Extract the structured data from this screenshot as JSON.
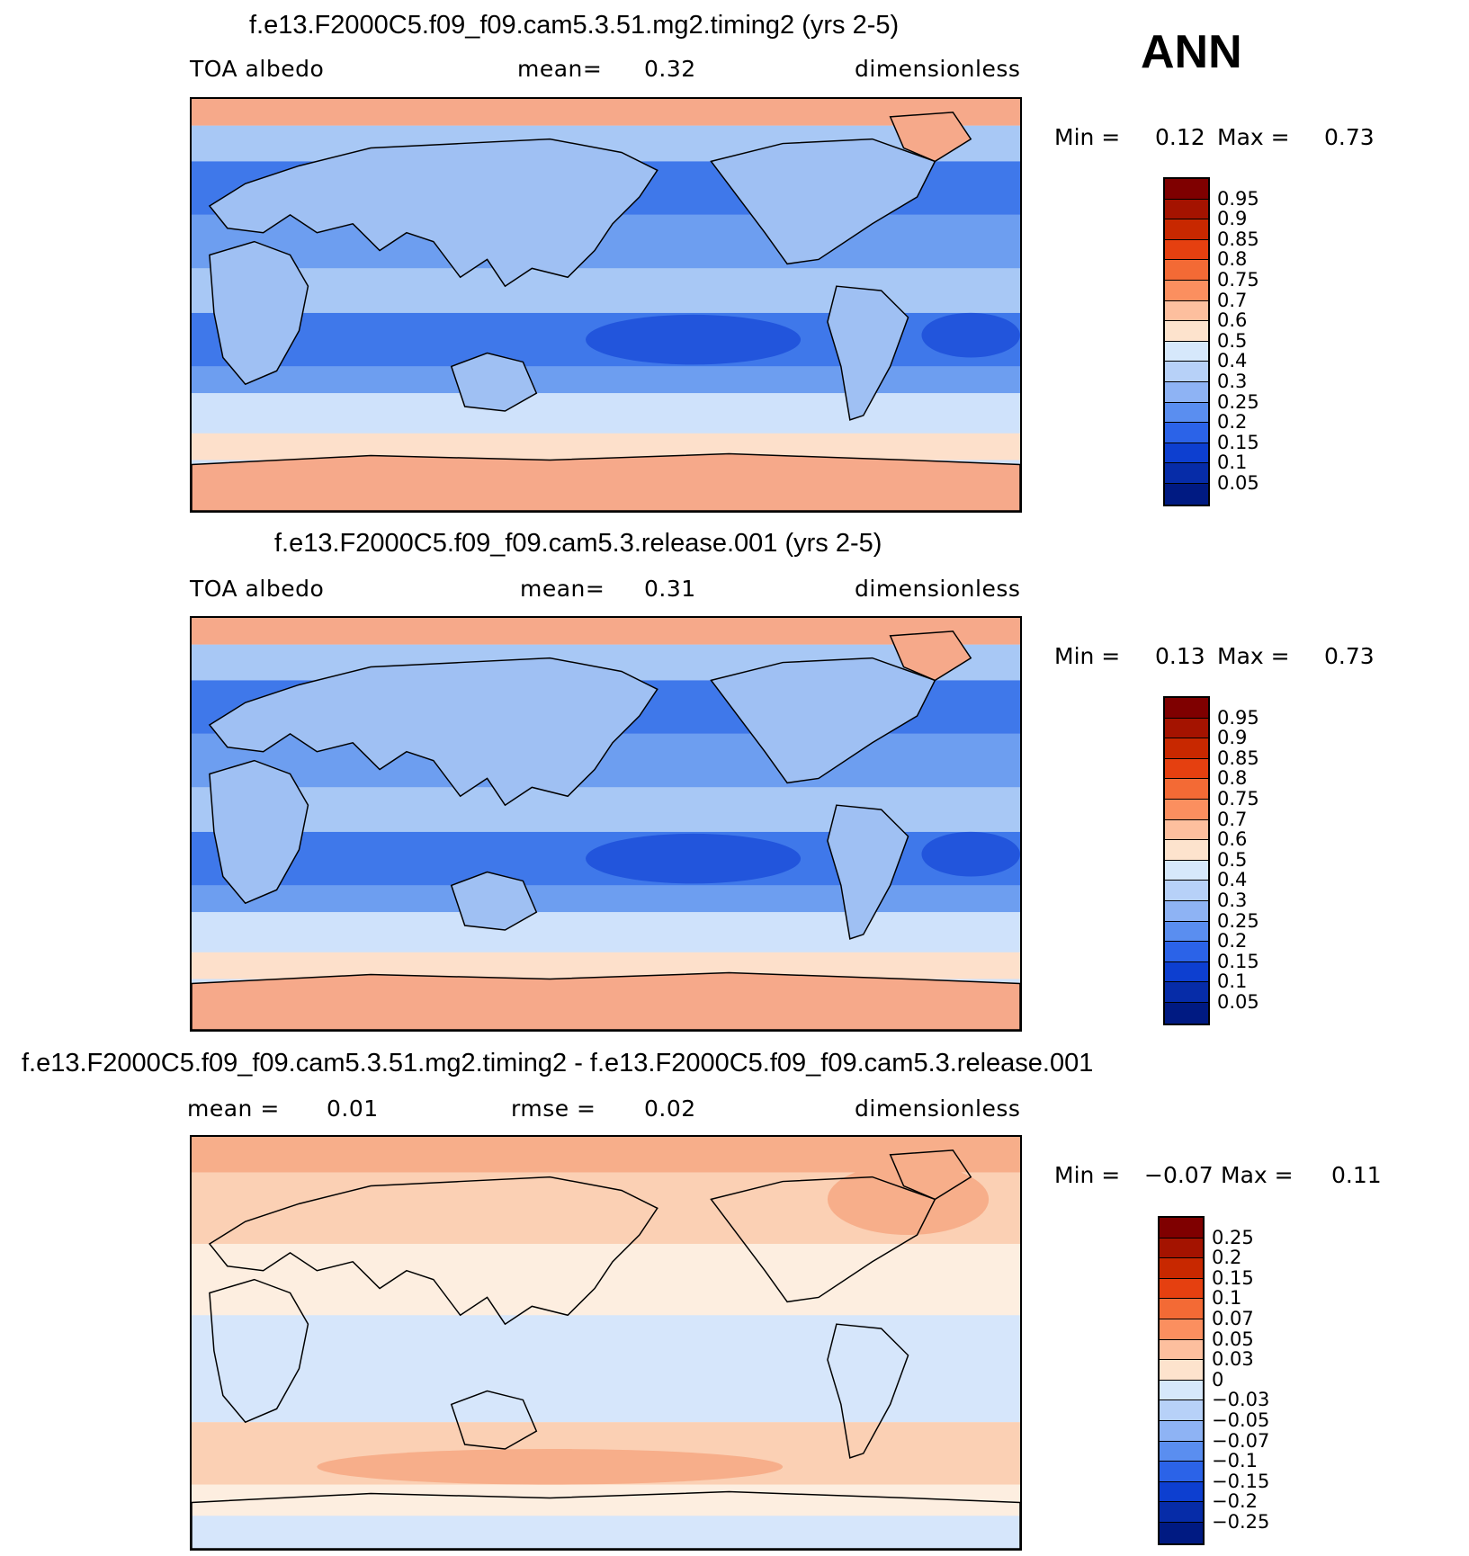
{
  "season_label": "ANN",
  "panels": [
    {
      "title": "f.e13.F2000C5.f09_f09.cam5.3.51.mg2.timing2 (yrs 2-5)",
      "left_label": "TOA albedo",
      "center_label": "mean=",
      "center_value": "0.32",
      "right_label": "dimensionless",
      "min_label": "Min =",
      "min_value": "0.12",
      "max_label": "Max =",
      "max_value": "0.73",
      "colorbar_ticks": [
        "0.95",
        "0.9",
        "0.85",
        "0.8",
        "0.75",
        "0.7",
        "0.6",
        "0.5",
        "0.4",
        "0.3",
        "0.25",
        "0.2",
        "0.15",
        "0.1",
        "0.05"
      ],
      "map_type": "absolute"
    },
    {
      "title": "f.e13.F2000C5.f09_f09.cam5.3.release.001 (yrs 2-5)",
      "left_label": "TOA albedo",
      "center_label": "mean=",
      "center_value": "0.31",
      "right_label": "dimensionless",
      "min_label": "Min =",
      "min_value": "0.13",
      "max_label": "Max =",
      "max_value": "0.73",
      "colorbar_ticks": [
        "0.95",
        "0.9",
        "0.85",
        "0.8",
        "0.75",
        "0.7",
        "0.6",
        "0.5",
        "0.4",
        "0.3",
        "0.25",
        "0.2",
        "0.15",
        "0.1",
        "0.05"
      ],
      "map_type": "absolute"
    },
    {
      "title": "f.e13.F2000C5.f09_f09.cam5.3.51.mg2.timing2 - f.e13.F2000C5.f09_f09.cam5.3.release.001",
      "left_label": "mean =",
      "left_value": "0.01",
      "center_label": "rmse =",
      "center_value": "0.02",
      "right_label": "dimensionless",
      "min_label": "Min =",
      "min_value": "−0.07",
      "max_label": "Max =",
      "max_value": "0.11",
      "colorbar_ticks": [
        "0.25",
        "0.2",
        "0.15",
        "0.1",
        "0.07",
        "0.05",
        "0.03",
        "0",
        "−0.03",
        "−0.05",
        "−0.07",
        "−0.1",
        "−0.15",
        "−0.2",
        "−0.25"
      ],
      "map_type": "difference"
    }
  ],
  "colors": {
    "colorbar": [
      "#7f0000",
      "#a41300",
      "#c82800",
      "#e54010",
      "#f36a35",
      "#fb8f5f",
      "#fdbf9e",
      "#fde3cd",
      "#d6e8fb",
      "#b7d1f8",
      "#8eb3f4",
      "#5a8ef0",
      "#2b63e8",
      "#0d3fd0",
      "#062ca8",
      "#001a82"
    ],
    "map_abs": {
      "band_polar": "#f6a98a",
      "band_subpolar": "#fde0cb",
      "band_midlat": "#cfe2fb",
      "band_storm": "#a8c8f5",
      "band_subtropic": "#6d9ef0",
      "band_tropic": "#3f78ea",
      "band_deep": "#2255dc",
      "land": "#9fc0f3"
    },
    "map_diff": {
      "pos": "#fbd0b4",
      "pos2": "#f7ae8a",
      "neg": "#d6e6fb",
      "zero": "#fdeee0"
    }
  }
}
